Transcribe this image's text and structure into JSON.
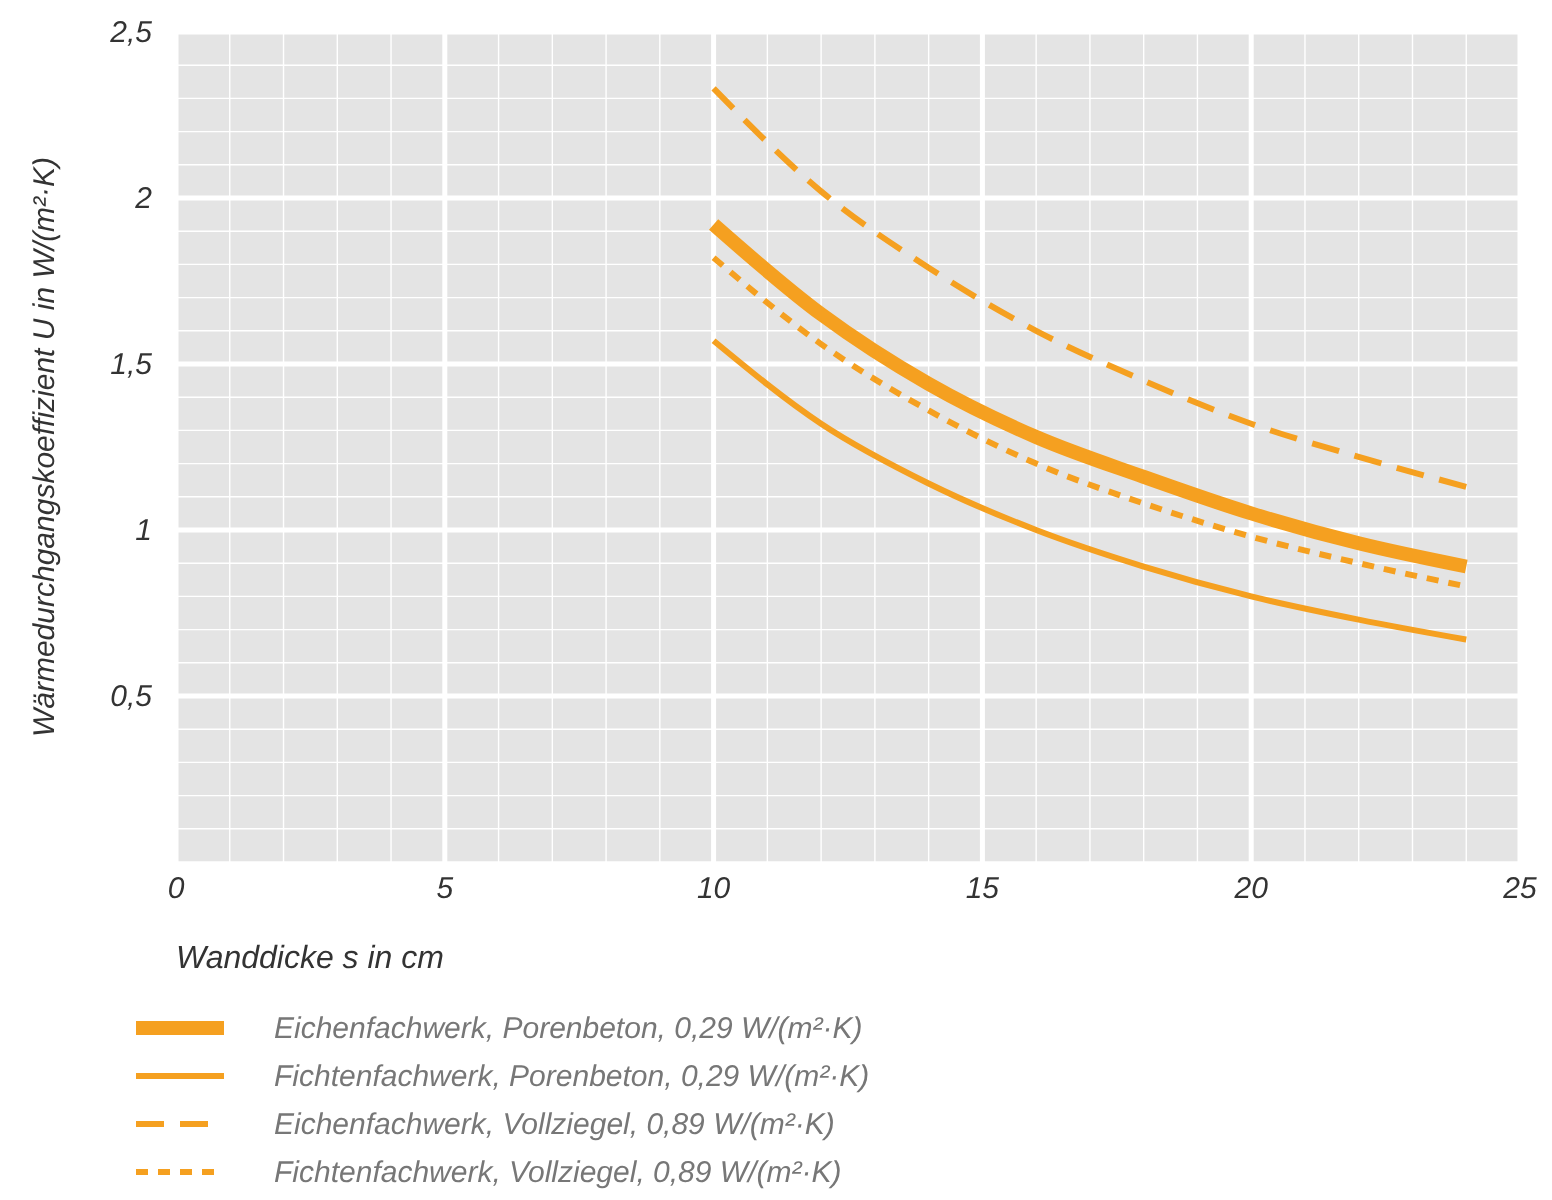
{
  "chart_data": {
    "type": "line",
    "xlabel": "Wanddicke s in cm",
    "ylabel": "Wärmedurchgangskoeffizient U in W/(m²·K)",
    "xlim": [
      0,
      25
    ],
    "xticks": [
      0,
      5,
      10,
      15,
      20,
      25
    ],
    "ylim": [
      0,
      2.5
    ],
    "yticks": [
      {
        "value": 0.5,
        "label": "0,5"
      },
      1,
      {
        "value": 1.5,
        "label": "1,5"
      },
      2,
      {
        "value": 2.5,
        "label": "2,5"
      }
    ],
    "grid": true,
    "legend": "bottom",
    "x": [
      10,
      12,
      14,
      16,
      18,
      20,
      22,
      24
    ],
    "series": [
      {
        "name": "Eichenfachwerk, Porenbeton, 0,29 W/(m²·K)",
        "color": "#f5a020",
        "line_style": "solid",
        "values": [
          1.92,
          1.65,
          1.44,
          1.28,
          1.16,
          1.05,
          0.96,
          0.89
        ]
      },
      {
        "name": "Fichtenfachwerk, Porenbeton, 0,29 W/(m²·K)",
        "color": "#f5a020",
        "line_style": "solid",
        "values": [
          1.57,
          1.32,
          1.14,
          1.0,
          0.89,
          0.8,
          0.73,
          0.67
        ]
      },
      {
        "name": "Eichenfachwerk, Vollziegel, 0,89 W/(m²·K)",
        "color": "#f5a020",
        "line_style": "dashed",
        "values": [
          2.33,
          2.02,
          1.79,
          1.6,
          1.45,
          1.32,
          1.22,
          1.13
        ]
      },
      {
        "name": "Fichtenfachwerk, Vollziegel, 0,89 W/(m²·K)",
        "color": "#f5a020",
        "line_style": "dotted",
        "values": [
          1.82,
          1.56,
          1.36,
          1.2,
          1.08,
          0.98,
          0.9,
          0.83
        ]
      }
    ]
  }
}
